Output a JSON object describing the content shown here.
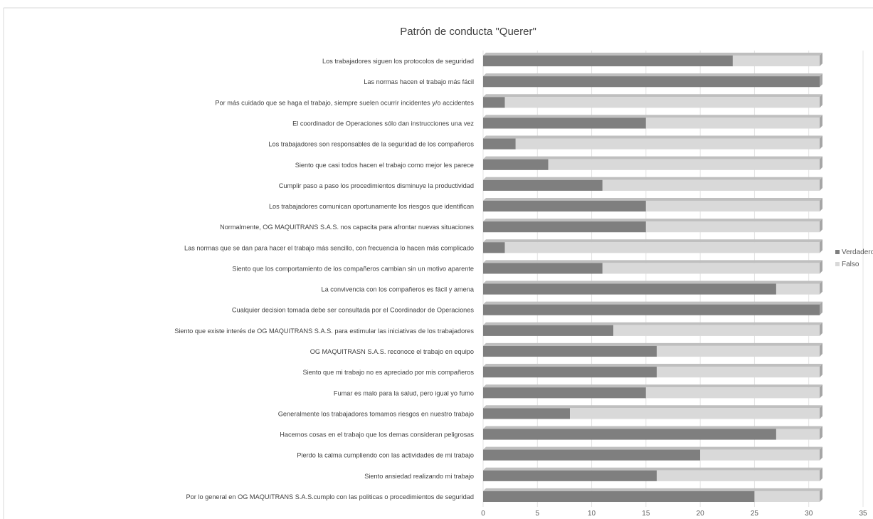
{
  "chart_data": {
    "type": "bar",
    "orientation": "horizontal",
    "stacked": true,
    "title": "Patrón de conducta \"Querer\"",
    "xlim": [
      0,
      35
    ],
    "x_ticks": [
      0,
      5,
      10,
      15,
      20,
      25,
      30,
      35
    ],
    "grid": true,
    "legend_position": "right",
    "categories": [
      "Los trabajadores siguen los protocolos de seguridad",
      "Las normas hacen el trabajo más fácil",
      "Por más cuidado que se haga el trabajo, siempre suelen ocurrir incidentes y/o accidentes",
      "El coordinador de Operaciones sólo dan instrucciones una vez",
      "Los trabajadores son responsables de la seguridad de los compañeros",
      "Siento que casi todos hacen el trabajo como mejor les parece",
      "Cumplir paso a paso los procedimientos disminuye la productividad",
      "Los trabajadores comunican oportunamente los riesgos que identifican",
      "Normalmente, OG MAQUITRANS S.A.S. nos capacita para afrontar nuevas situaciones",
      "Las normas que se dan para hacer el trabajo más sencillo, con frecuencia lo hacen más complicado",
      "Siento que los comportamiento de los compañeros cambian sin un motivo aparente",
      "La convivencia con los compañeros es fácil y amena",
      "Cualquier decision tomada debe ser consultada por el Coordinador de Operaciones",
      "Siento que existe interés de OG MAQUITRANS S.A.S. para estimular las iniciativas de los trabajadores",
      "OG MAQUITRASN S.A.S. reconoce el trabajo en equipo",
      "Siento que mi trabajo no es apreciado por mis compañeros",
      "Fumar es malo para  la salud, pero igual yo fumo",
      "Generalmente los trabajadores tomamos riesgos en nuestro trabajo",
      "Hacemos cosas en el trabajo que los demas consideran peligrosas",
      "Pierdo la calma cumpliendo con las actividades de mi trabajo",
      "Siento  ansiedad realizando mi trabajo",
      "Por lo general en OG MAQUITRANS S.A.S.cumplo con las politicas o procedimientos de seguridad"
    ],
    "series": [
      {
        "name": "Verdadero",
        "color": "#7f7f7f",
        "values": [
          23,
          31,
          2,
          15,
          3,
          6,
          11,
          15,
          15,
          2,
          11,
          27,
          31,
          12,
          16,
          16,
          15,
          8,
          27,
          20,
          16,
          25
        ]
      },
      {
        "name": "Falso",
        "color": "#d9d9d9",
        "values": [
          8,
          0,
          29,
          16,
          28,
          25,
          20,
          16,
          16,
          29,
          20,
          4,
          0,
          19,
          15,
          15,
          16,
          23,
          4,
          11,
          15,
          6
        ]
      }
    ]
  }
}
